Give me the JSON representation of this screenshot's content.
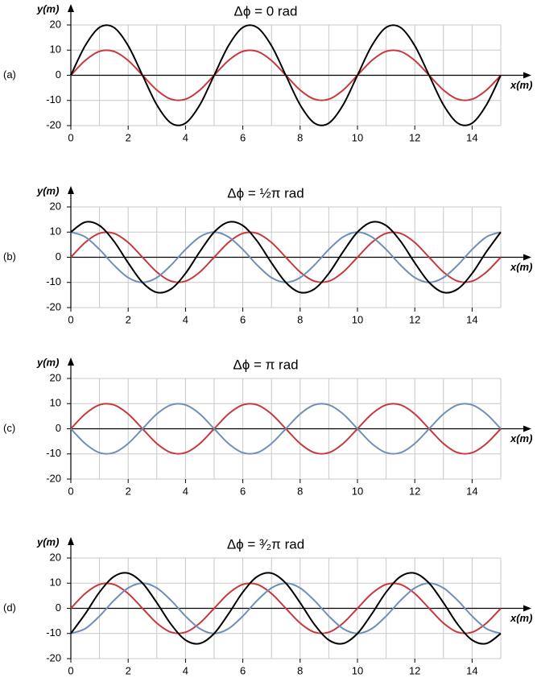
{
  "chart_data": [
    {
      "type": "line",
      "panel_label": "(a)",
      "title": "Δϕ = 0 rad",
      "ylabel": "y(m)",
      "xlabel": "x(m)",
      "x": [
        0,
        0.5,
        1,
        1.5,
        2,
        2.5,
        3,
        3.5,
        4,
        4.5,
        5,
        5.5,
        6,
        6.5,
        7,
        7.5,
        8,
        8.5,
        9,
        9.5,
        10,
        10.5,
        11,
        11.5,
        12,
        12.5,
        13,
        13.5,
        14,
        14.5,
        15
      ],
      "series": [
        {
          "color": "#c8373c",
          "values": [
            0,
            5.88,
            9.51,
            9.51,
            5.88,
            0,
            -5.88,
            -9.51,
            -9.51,
            -5.88,
            0,
            5.88,
            9.51,
            9.51,
            5.88,
            0,
            -5.88,
            -9.51,
            -9.51,
            -5.88,
            0,
            5.88,
            9.51,
            9.51,
            5.88,
            0,
            -5.88,
            -9.51,
            -9.51,
            -5.88,
            0
          ]
        },
        {
          "color": "#000000",
          "values": [
            0,
            11.76,
            19.02,
            19.02,
            11.76,
            0,
            -11.76,
            -19.02,
            -19.02,
            -11.76,
            0,
            11.76,
            19.02,
            19.02,
            11.76,
            0,
            -11.76,
            -19.02,
            -19.02,
            -11.76,
            0,
            11.76,
            19.02,
            19.02,
            11.76,
            0,
            -11.76,
            -19.02,
            -19.02,
            -11.76,
            0
          ]
        }
      ],
      "xlim": [
        0,
        15
      ],
      "ylim": [
        -20,
        20
      ],
      "xticks": [
        0,
        2,
        4,
        6,
        8,
        10,
        12,
        14
      ],
      "yticks": [
        -20,
        -10,
        0,
        10,
        20
      ],
      "x_gridlines": [
        0,
        1,
        2,
        3,
        4,
        5,
        6,
        7,
        8,
        9,
        10,
        11,
        12,
        13,
        14,
        15
      ],
      "grid": true
    },
    {
      "type": "line",
      "panel_label": "(b)",
      "title": "Δϕ = ½π rad",
      "ylabel": "y(m)",
      "xlabel": "x(m)",
      "x": [
        0,
        0.5,
        1,
        1.5,
        2,
        2.5,
        3,
        3.5,
        4,
        4.5,
        5,
        5.5,
        6,
        6.5,
        7,
        7.5,
        8,
        8.5,
        9,
        9.5,
        10,
        10.5,
        11,
        11.5,
        12,
        12.5,
        13,
        13.5,
        14,
        14.5,
        15
      ],
      "series": [
        {
          "color": "#c8373c",
          "values": [
            0,
            5.88,
            9.51,
            9.51,
            5.88,
            0,
            -5.88,
            -9.51,
            -9.51,
            -5.88,
            0,
            5.88,
            9.51,
            9.51,
            5.88,
            0,
            -5.88,
            -9.51,
            -9.51,
            -5.88,
            0,
            5.88,
            9.51,
            9.51,
            5.88,
            0,
            -5.88,
            -9.51,
            -9.51,
            -5.88,
            0
          ]
        },
        {
          "color": "#6f8fb8",
          "values": [
            10,
            8.09,
            3.09,
            -3.09,
            -8.09,
            -10,
            -8.09,
            -3.09,
            3.09,
            8.09,
            10,
            8.09,
            3.09,
            -3.09,
            -8.09,
            -10,
            -8.09,
            -3.09,
            3.09,
            8.09,
            10,
            8.09,
            3.09,
            -3.09,
            -8.09,
            -10,
            -8.09,
            -3.09,
            3.09,
            8.09,
            10
          ]
        },
        {
          "color": "#000000",
          "values": [
            10,
            13.97,
            12.6,
            6.42,
            -2.21,
            -10,
            -13.97,
            -12.6,
            -6.42,
            2.21,
            10,
            13.97,
            12.6,
            6.42,
            -2.21,
            -10,
            -13.97,
            -12.6,
            -6.42,
            2.21,
            10,
            13.97,
            12.6,
            6.42,
            -2.21,
            -10,
            -13.97,
            -12.6,
            -6.42,
            2.21,
            10
          ]
        }
      ],
      "xlim": [
        0,
        15
      ],
      "ylim": [
        -20,
        20
      ],
      "xticks": [
        0,
        2,
        4,
        6,
        8,
        10,
        12,
        14
      ],
      "yticks": [
        -20,
        -10,
        0,
        10,
        20
      ],
      "x_gridlines": [
        0,
        1,
        2,
        3,
        4,
        5,
        6,
        7,
        8,
        9,
        10,
        11,
        12,
        13,
        14,
        15
      ],
      "grid": true
    },
    {
      "type": "line",
      "panel_label": "(c)",
      "title": "Δϕ = π rad",
      "ylabel": "y(m)",
      "xlabel": "x(m)",
      "x": [
        0,
        0.5,
        1,
        1.5,
        2,
        2.5,
        3,
        3.5,
        4,
        4.5,
        5,
        5.5,
        6,
        6.5,
        7,
        7.5,
        8,
        8.5,
        9,
        9.5,
        10,
        10.5,
        11,
        11.5,
        12,
        12.5,
        13,
        13.5,
        14,
        14.5,
        15
      ],
      "series": [
        {
          "color": "#c8373c",
          "values": [
            0,
            5.88,
            9.51,
            9.51,
            5.88,
            0,
            -5.88,
            -9.51,
            -9.51,
            -5.88,
            0,
            5.88,
            9.51,
            9.51,
            5.88,
            0,
            -5.88,
            -9.51,
            -9.51,
            -5.88,
            0,
            5.88,
            9.51,
            9.51,
            5.88,
            0,
            -5.88,
            -9.51,
            -9.51,
            -5.88,
            0
          ]
        },
        {
          "color": "#6f8fb8",
          "values": [
            0,
            -5.88,
            -9.51,
            -9.51,
            -5.88,
            0,
            5.88,
            9.51,
            9.51,
            5.88,
            0,
            -5.88,
            -9.51,
            -9.51,
            -5.88,
            0,
            5.88,
            9.51,
            9.51,
            5.88,
            0,
            -5.88,
            -9.51,
            -9.51,
            -5.88,
            0,
            5.88,
            9.51,
            9.51,
            5.88,
            0
          ]
        }
      ],
      "xlim": [
        0,
        15
      ],
      "ylim": [
        -20,
        20
      ],
      "xticks": [
        0,
        2,
        4,
        6,
        8,
        10,
        12,
        14
      ],
      "yticks": [
        -20,
        -10,
        0,
        10,
        20
      ],
      "x_gridlines": [
        0,
        1,
        2,
        3,
        4,
        5,
        6,
        7,
        8,
        9,
        10,
        11,
        12,
        13,
        14,
        15
      ],
      "grid": true
    },
    {
      "type": "line",
      "panel_label": "(d)",
      "title": "Δϕ = ³⁄₂π rad",
      "ylabel": "y(m)",
      "xlabel": "x(m)",
      "x": [
        0,
        0.5,
        1,
        1.5,
        2,
        2.5,
        3,
        3.5,
        4,
        4.5,
        5,
        5.5,
        6,
        6.5,
        7,
        7.5,
        8,
        8.5,
        9,
        9.5,
        10,
        10.5,
        11,
        11.5,
        12,
        12.5,
        13,
        13.5,
        14,
        14.5,
        15
      ],
      "series": [
        {
          "color": "#c8373c",
          "values": [
            0,
            5.88,
            9.51,
            9.51,
            5.88,
            0,
            -5.88,
            -9.51,
            -9.51,
            -5.88,
            0,
            5.88,
            9.51,
            9.51,
            5.88,
            0,
            -5.88,
            -9.51,
            -9.51,
            -5.88,
            0,
            5.88,
            9.51,
            9.51,
            5.88,
            0,
            -5.88,
            -9.51,
            -9.51,
            -5.88,
            0
          ]
        },
        {
          "color": "#6f8fb8",
          "values": [
            -10,
            -8.09,
            -3.09,
            3.09,
            8.09,
            10,
            8.09,
            3.09,
            -3.09,
            -8.09,
            -10,
            -8.09,
            -3.09,
            3.09,
            8.09,
            10,
            8.09,
            3.09,
            -3.09,
            -8.09,
            -10,
            -8.09,
            -3.09,
            3.09,
            8.09,
            10,
            8.09,
            3.09,
            -3.09,
            -8.09,
            -10
          ]
        },
        {
          "color": "#000000",
          "values": [
            -10,
            -2.21,
            6.42,
            12.6,
            13.97,
            10,
            2.21,
            -6.42,
            -12.6,
            -13.97,
            -10,
            -2.21,
            6.42,
            12.6,
            13.97,
            10,
            2.21,
            -6.42,
            -12.6,
            -13.97,
            -10,
            -2.21,
            6.42,
            12.6,
            13.97,
            10,
            2.21,
            -6.42,
            -12.6,
            -13.97,
            -10
          ]
        }
      ],
      "xlim": [
        0,
        15
      ],
      "ylim": [
        -20,
        20
      ],
      "xticks": [
        0,
        2,
        4,
        6,
        8,
        10,
        12,
        14
      ],
      "yticks": [
        -20,
        -10,
        0,
        10,
        20
      ],
      "x_gridlines": [
        0,
        1,
        2,
        3,
        4,
        5,
        6,
        7,
        8,
        9,
        10,
        11,
        12,
        13,
        14,
        15
      ],
      "grid": true
    }
  ]
}
